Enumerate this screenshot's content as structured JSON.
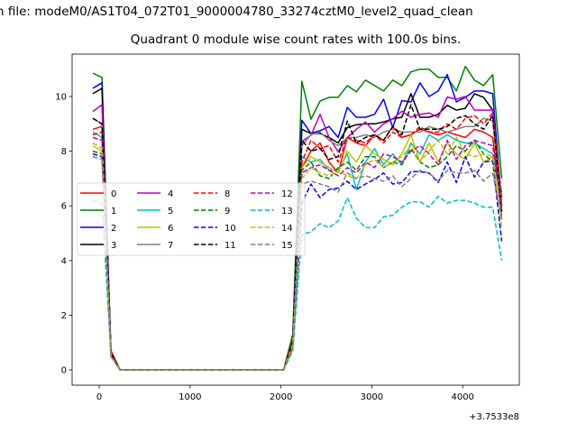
{
  "chart_data": {
    "type": "line",
    "suptitle": "n file: modeM0/AS1T04_072T01_9000004780_33274cztM0_level2_quad_clean",
    "title": "Quadrant 0 module wise count rates with 100.0s bins.",
    "xlabel": "",
    "ylabel": "",
    "x_offset_text": "+3.7533e8",
    "xlim": [
      -298,
      4623
    ],
    "ylim": [
      -0.56,
      11.55
    ],
    "xticks": [
      0,
      1000,
      2000,
      3000,
      4000
    ],
    "xtick_labels": [
      "0",
      "1000",
      "2000",
      "3000",
      "4000"
    ],
    "yticks": [
      0,
      2,
      4,
      6,
      8,
      10
    ],
    "ytick_labels": [
      "0",
      "2",
      "4",
      "6",
      "8",
      "10"
    ],
    "grid": false,
    "legend_placement": "center-left",
    "x": [
      -70,
      30,
      130,
      230,
      330,
      430,
      530,
      630,
      730,
      830,
      930,
      1030,
      1130,
      1230,
      1330,
      1430,
      1530,
      1630,
      1730,
      1830,
      1930,
      2030,
      2130,
      2230,
      2330,
      2430,
      2530,
      2630,
      2730,
      2830,
      2930,
      3030,
      3130,
      3230,
      3330,
      3430,
      3530,
      3630,
      3730,
      3830,
      3930,
      4030,
      4130,
      4230,
      4330,
      4430
    ],
    "series": [
      {
        "name": "0",
        "color": "#ff0000",
        "dash": false,
        "values": [
          8.8,
          8.9,
          0.7,
          0,
          0,
          0,
          0,
          0,
          0,
          0,
          0,
          0,
          0,
          0,
          0,
          0,
          0,
          0,
          0,
          0,
          0,
          0,
          1.2,
          7.4,
          8.0,
          8.3,
          7.6,
          7.2,
          8.5,
          8.3,
          8.2,
          8.6,
          8.4,
          8.9,
          8.5,
          8.6,
          8.8,
          8.7,
          8.6,
          8.7,
          8.6,
          8.5,
          8.8,
          8.7,
          8.5,
          5.8
        ]
      },
      {
        "name": "1",
        "color": "#008000",
        "dash": false,
        "values": [
          10.85,
          10.7,
          0.6,
          0,
          0,
          0,
          0,
          0,
          0,
          0,
          0,
          0,
          0,
          0,
          0,
          0,
          0,
          0,
          0,
          0,
          0,
          0,
          1.3,
          10.56,
          9.17,
          9.83,
          9.97,
          9.97,
          10.4,
          10.17,
          10.6,
          10.4,
          10.2,
          10.6,
          10.4,
          10.9,
          11.0,
          11.0,
          10.7,
          10.7,
          10.2,
          11.1,
          10.6,
          10.4,
          10.8,
          7.0
        ]
      },
      {
        "name": "2",
        "color": "#0000ff",
        "dash": false,
        "values": [
          10.3,
          10.5,
          0.6,
          0,
          0,
          0,
          0,
          0,
          0,
          0,
          0,
          0,
          0,
          0,
          0,
          0,
          0,
          0,
          0,
          0,
          0,
          0,
          1.1,
          9.13,
          8.65,
          8.75,
          8.9,
          8.5,
          9.6,
          9.24,
          9.24,
          9.35,
          9.9,
          8.86,
          9.85,
          9.8,
          10.5,
          10.0,
          10.2,
          10.8,
          9.8,
          9.97,
          10.2,
          10.2,
          10.1,
          6.0
        ]
      },
      {
        "name": "3",
        "color": "#000000",
        "dash": false,
        "values": [
          10.1,
          10.3,
          0.6,
          0,
          0,
          0,
          0,
          0,
          0,
          0,
          0,
          0,
          0,
          0,
          0,
          0,
          0,
          0,
          0,
          0,
          0,
          0,
          1.0,
          8.8,
          8.65,
          8.65,
          8.5,
          8.3,
          8.86,
          8.97,
          9.0,
          9.0,
          9.07,
          9.18,
          9.24,
          10.1,
          9.24,
          9.24,
          9.35,
          9.68,
          9.5,
          9.57,
          10.1,
          9.97,
          9.5,
          5.5
        ]
      },
      {
        "name": "4",
        "color": "#bf00bf",
        "dash": false,
        "values": [
          9.45,
          9.7,
          0.6,
          0,
          0,
          0,
          0,
          0,
          0,
          0,
          0,
          0,
          0,
          0,
          0,
          0,
          0,
          0,
          0,
          0,
          0,
          0,
          1.0,
          8.36,
          8.58,
          9.35,
          8.5,
          7.98,
          8.5,
          8.8,
          9.07,
          8.7,
          9.0,
          9.18,
          9.46,
          9.24,
          9.35,
          9.4,
          9.24,
          9.98,
          9.9,
          10.0,
          9.5,
          9.5,
          9.5,
          6.0
        ]
      },
      {
        "name": "5",
        "color": "#00bfbf",
        "dash": false,
        "values": [
          8.7,
          8.5,
          0.5,
          0,
          0,
          0,
          0,
          0,
          0,
          0,
          0,
          0,
          0,
          0,
          0,
          0,
          0,
          0,
          0,
          0,
          0,
          0,
          0.9,
          7.8,
          7.6,
          7.7,
          7.3,
          7.3,
          7.9,
          6.6,
          7.6,
          8.1,
          7.5,
          7.9,
          7.5,
          8.3,
          7.9,
          8.6,
          8.4,
          8.6,
          8.4,
          8.3,
          8.3,
          8.1,
          7.9,
          6.2
        ]
      },
      {
        "name": "6",
        "color": "#bfbf00",
        "dash": false,
        "values": [
          8.2,
          8.0,
          0.5,
          0,
          0,
          0,
          0,
          0,
          0,
          0,
          0,
          0,
          0,
          0,
          0,
          0,
          0,
          0,
          0,
          0,
          0,
          0,
          0.9,
          7.4,
          7.8,
          7.6,
          7.4,
          7.2,
          8.0,
          7.6,
          8.2,
          7.9,
          7.7,
          7.5,
          7.9,
          8.6,
          7.6,
          8.3,
          7.6,
          8.3,
          7.9,
          7.7,
          8.3,
          7.6,
          7.8,
          5.5
        ]
      },
      {
        "name": "7",
        "color": "#808080",
        "dash": false,
        "values": [
          9.2,
          9.0,
          0.6,
          0,
          0,
          0,
          0,
          0,
          0,
          0,
          0,
          0,
          0,
          0,
          0,
          0,
          0,
          0,
          0,
          0,
          0,
          0,
          1.0,
          8.2,
          8.6,
          8.7,
          8.4,
          8.2,
          8.5,
          8.5,
          8.6,
          8.5,
          8.7,
          8.8,
          8.7,
          8.7,
          8.7,
          8.9,
          8.8,
          8.7,
          8.8,
          8.9,
          8.9,
          9.2,
          9.1,
          6.0
        ]
      },
      {
        "name": "8",
        "color": "#ff0000",
        "dash": true,
        "values": [
          8.6,
          8.7,
          0.6,
          0,
          0,
          0,
          0,
          0,
          0,
          0,
          0,
          0,
          0,
          0,
          0,
          0,
          0,
          0,
          0,
          0,
          0,
          0,
          1.1,
          7.6,
          8.4,
          8.1,
          8.2,
          7.6,
          8.5,
          8.4,
          8.3,
          8.6,
          8.3,
          8.7,
          8.5,
          8.6,
          8.9,
          8.7,
          8.7,
          9.0,
          8.8,
          9.2,
          9.3,
          9.0,
          9.4,
          6.3
        ]
      },
      {
        "name": "9",
        "color": "#008000",
        "dash": true,
        "values": [
          8.0,
          7.9,
          0.5,
          0,
          0,
          0,
          0,
          0,
          0,
          0,
          0,
          0,
          0,
          0,
          0,
          0,
          0,
          0,
          0,
          0,
          0,
          0,
          0.9,
          7.3,
          7.6,
          7.1,
          7.0,
          7.4,
          7.6,
          7.3,
          7.8,
          7.8,
          7.4,
          7.6,
          7.5,
          8.1,
          7.6,
          7.4,
          7.5,
          7.8,
          8.2,
          8.0,
          8.4,
          7.9,
          7.6,
          6.5
        ]
      },
      {
        "name": "10",
        "color": "#0000ff",
        "dash": true,
        "values": [
          7.9,
          7.8,
          0.5,
          0,
          0,
          0,
          0,
          0,
          0,
          0,
          0,
          0,
          0,
          0,
          0,
          0,
          0,
          0,
          0,
          0,
          0,
          0,
          0.8,
          6.1,
          6.8,
          6.3,
          6.6,
          6.65,
          6.9,
          6.6,
          6.8,
          6.97,
          7.2,
          6.8,
          6.85,
          7.25,
          7.25,
          7.2,
          6.85,
          7.6,
          6.85,
          7.8,
          7.05,
          7.6,
          7.65,
          4.7
        ]
      },
      {
        "name": "11",
        "color": "#000000",
        "dash": true,
        "values": [
          9.2,
          9.0,
          0.6,
          0,
          0,
          0,
          0,
          0,
          0,
          0,
          0,
          0,
          0,
          0,
          0,
          0,
          0,
          0,
          0,
          0,
          0,
          0,
          1.0,
          8.4,
          8.0,
          8.1,
          7.7,
          7.8,
          9.1,
          8.3,
          8.5,
          8.6,
          8.4,
          8.9,
          8.6,
          9.7,
          8.8,
          8.8,
          8.8,
          8.9,
          9.2,
          9.3,
          9.0,
          8.8,
          9.3,
          5.8
        ]
      },
      {
        "name": "12",
        "color": "#bf00bf",
        "dash": true,
        "values": [
          8.5,
          8.4,
          0.5,
          0,
          0,
          0,
          0,
          0,
          0,
          0,
          0,
          0,
          0,
          0,
          0,
          0,
          0,
          0,
          0,
          0,
          0,
          0,
          0.9,
          7.2,
          7.4,
          7.5,
          7.3,
          7.1,
          7.4,
          7.2,
          7.6,
          7.4,
          7.9,
          7.8,
          7.6,
          8.0,
          8.2,
          7.9,
          7.5,
          8.4,
          7.7,
          8.2,
          8.4,
          8.3,
          8.2,
          5.9
        ]
      },
      {
        "name": "13",
        "color": "#00bfbf",
        "dash": true,
        "values": [
          6.2,
          6.1,
          0.5,
          0,
          0,
          0,
          0,
          0,
          0,
          0,
          0,
          0,
          0,
          0,
          0,
          0,
          0,
          0,
          0,
          0,
          0,
          0,
          0.7,
          4.95,
          5.05,
          5.35,
          5.2,
          5.45,
          6.3,
          5.55,
          5.2,
          5.2,
          5.6,
          5.65,
          5.95,
          6.15,
          6.15,
          5.95,
          6.35,
          6.1,
          6.2,
          6.2,
          6.1,
          5.95,
          5.95,
          4.0
        ]
      },
      {
        "name": "14",
        "color": "#bfbf00",
        "dash": true,
        "values": [
          8.3,
          8.1,
          0.5,
          0,
          0,
          0,
          0,
          0,
          0,
          0,
          0,
          0,
          0,
          0,
          0,
          0,
          0,
          0,
          0,
          0,
          0,
          0,
          0.9,
          7.0,
          7.4,
          7.2,
          7.1,
          7.3,
          7.1,
          7.0,
          7.5,
          7.7,
          7.4,
          7.6,
          7.8,
          8.2,
          7.6,
          8.0,
          8.4,
          7.9,
          8.5,
          7.9,
          7.8,
          7.9,
          7.8,
          5.2
        ]
      },
      {
        "name": "15",
        "color": "#808080",
        "dash": true,
        "values": [
          7.8,
          7.7,
          0.5,
          0,
          0,
          0,
          0,
          0,
          0,
          0,
          0,
          0,
          0,
          0,
          0,
          0,
          0,
          0,
          0,
          0,
          0,
          0,
          0.8,
          6.8,
          6.9,
          6.8,
          6.7,
          6.5,
          7.2,
          7.0,
          7.1,
          7.0,
          6.9,
          7.1,
          6.7,
          7.0,
          7.3,
          7.2,
          6.9,
          7.3,
          7.2,
          7.2,
          7.3,
          6.9,
          7.2,
          5.5
        ]
      }
    ]
  }
}
